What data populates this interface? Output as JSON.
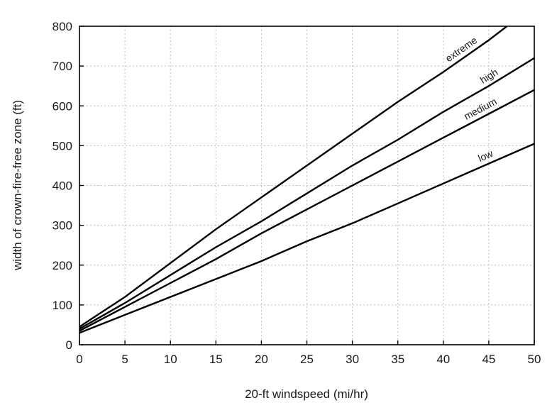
{
  "chart_data": {
    "type": "line",
    "title": "",
    "xlabel": "20-ft windspeed (mi/hr)",
    "ylabel": "width of crown-fire-free zone (ft)",
    "xlim": [
      0,
      50
    ],
    "ylim": [
      0,
      800
    ],
    "xticks": [
      0,
      5,
      10,
      15,
      20,
      25,
      30,
      35,
      40,
      45,
      50
    ],
    "yticks": [
      0,
      100,
      200,
      300,
      400,
      500,
      600,
      700,
      800
    ],
    "grid": true,
    "series": [
      {
        "name": "extreme",
        "x": [
          0,
          5,
          10,
          15,
          20,
          25,
          30,
          35,
          40,
          45,
          47
        ],
        "y": [
          45,
          120,
          205,
          290,
          370,
          450,
          530,
          610,
          685,
          765,
          800
        ]
      },
      {
        "name": "high",
        "x": [
          0,
          5,
          10,
          15,
          20,
          25,
          30,
          35,
          40,
          45,
          50
        ],
        "y": [
          40,
          105,
          175,
          245,
          310,
          380,
          450,
          515,
          585,
          650,
          720
        ]
      },
      {
        "name": "medium",
        "x": [
          0,
          5,
          10,
          15,
          20,
          25,
          30,
          35,
          40,
          45,
          50
        ],
        "y": [
          35,
          95,
          155,
          215,
          280,
          340,
          400,
          460,
          520,
          580,
          640
        ]
      },
      {
        "name": "low",
        "x": [
          0,
          5,
          10,
          15,
          20,
          25,
          30,
          35,
          40,
          45,
          50
        ],
        "y": [
          30,
          75,
          120,
          165,
          210,
          260,
          305,
          355,
          405,
          455,
          505
        ]
      }
    ]
  }
}
